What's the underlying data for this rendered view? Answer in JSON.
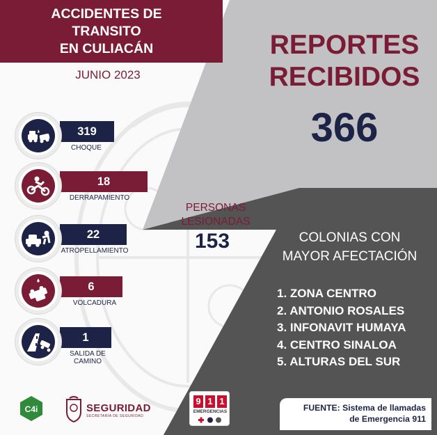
{
  "header": {
    "title_line1": "ACCIDENTES DE",
    "title_line2": "TRANSITO",
    "title_line3": "EN CULIACÁN",
    "period": "JUNIO 2023"
  },
  "reportes": {
    "title_line1": "REPORTES",
    "title_line2": "RECIBIDOS",
    "value": "366"
  },
  "lesionadas": {
    "label_line1": "PERSONAS",
    "label_line2": "LESIONADAS",
    "value": "153"
  },
  "accidents": [
    {
      "value": "319",
      "label": "CHOQUE",
      "icon": "car-crash-icon"
    },
    {
      "value": "18",
      "label": "DERRAPAMIENTO",
      "icon": "motorcycle-skid-icon"
    },
    {
      "value": "22",
      "label": "ATROPELLAMIENTO",
      "icon": "pedestrian-hit-icon"
    },
    {
      "value": "6",
      "label": "VOLCADURA",
      "icon": "car-rollover-icon"
    },
    {
      "value": "1",
      "label_line1": "SALIDA DE",
      "label_line2": "CAMINO",
      "icon": "road-exit-icon"
    }
  ],
  "colonias": {
    "title_line1": "COLONIAS CON",
    "title_line2": "MAYOR AFECTACIÓN",
    "items": [
      "1. ZONA CENTRO",
      "2. ANTONIO ROSALES",
      "3. INFONAVIT HUMAYA",
      "4. CENTRO SINALOA",
      "5. ALTURAS DEL SUR"
    ]
  },
  "fuente": {
    "line1": "FUENTE: Sistema de llamadas",
    "line2": "de Emergencia 911"
  },
  "logos": {
    "seguridad": "SEGURIDAD",
    "seguridad_sub": "SECRETARÍA DE SEGURIDAD",
    "n9": "9",
    "n1a": "1",
    "n1b": "1",
    "emergencias": "EMERGENCIAS"
  },
  "colors": {
    "maroon": "#7a1c35",
    "navy": "#1c2346",
    "grey_light": "#c2c2c4",
    "grey_dark": "#545454"
  }
}
